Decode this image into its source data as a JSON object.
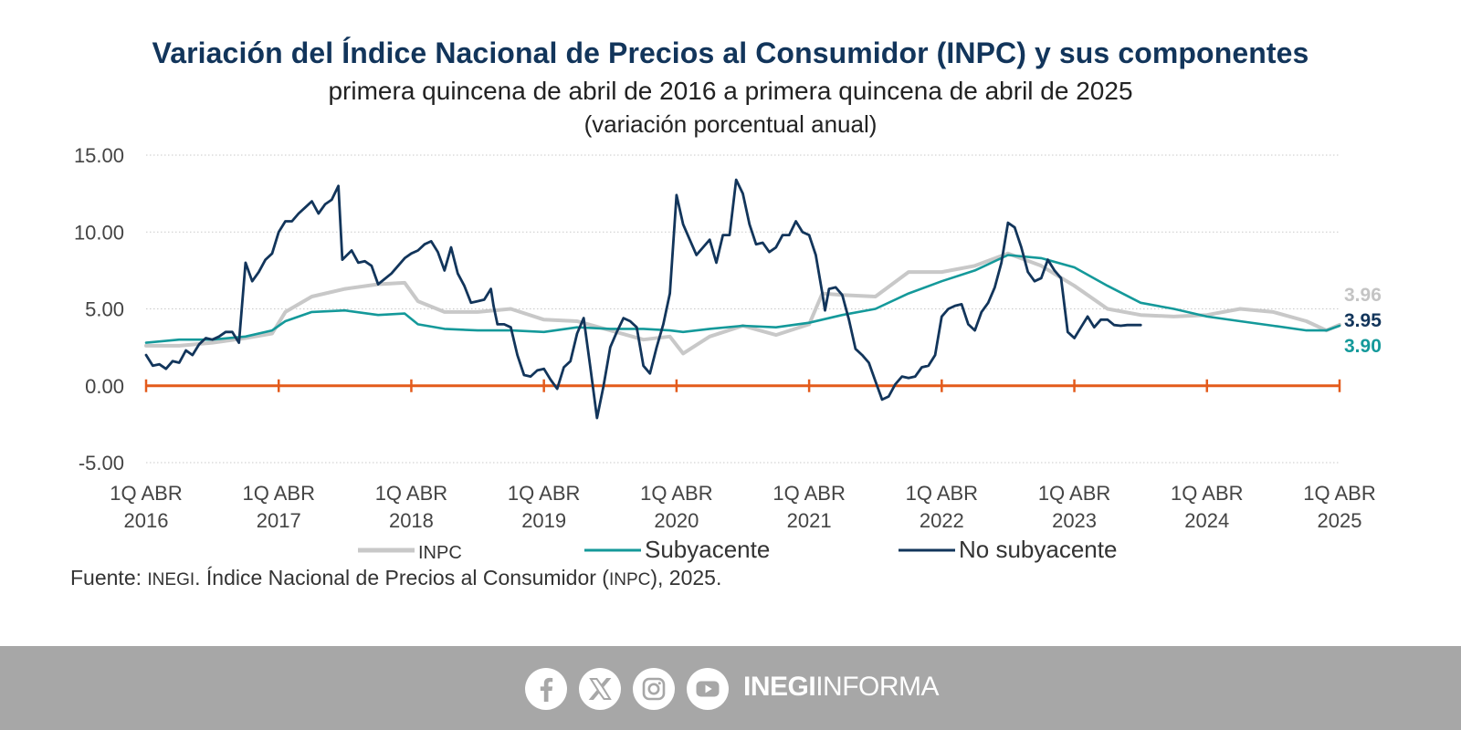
{
  "header": {
    "title": "Variación del Índice Nacional de Precios al Consumidor (INPC) y sus componentes",
    "subtitle": "primera quincena de abril de 2016 a primera quincena de abril de 2025",
    "unit": "(variación porcentual anual)"
  },
  "chart_data": {
    "type": "line",
    "ylim": [
      -5,
      15
    ],
    "yticks": [
      "15.00",
      "10.00",
      "5.00",
      "0.00",
      "-5.00"
    ],
    "x_labels": [
      [
        "1Q ABR",
        "2016"
      ],
      [
        "1Q ABR",
        "2017"
      ],
      [
        "1Q ABR",
        "2018"
      ],
      [
        "1Q ABR",
        "2019"
      ],
      [
        "1Q ABR",
        "2020"
      ],
      [
        "1Q ABR",
        "2021"
      ],
      [
        "1Q ABR",
        "2022"
      ],
      [
        "1Q ABR",
        "2023"
      ],
      [
        "1Q ABR",
        "2024"
      ],
      [
        "1Q ABR",
        "2025"
      ]
    ],
    "x_range": [
      2016.0,
      2025.0
    ],
    "grid": true,
    "legend_position": "bottom",
    "series": [
      {
        "name": "INPC",
        "color": "#c8c8c8",
        "end_label": "3.96",
        "points": [
          [
            2016.0,
            2.6
          ],
          [
            2016.25,
            2.6
          ],
          [
            2016.5,
            2.8
          ],
          [
            2016.75,
            3.1
          ],
          [
            2016.95,
            3.4
          ],
          [
            2017.05,
            4.8
          ],
          [
            2017.25,
            5.8
          ],
          [
            2017.5,
            6.3
          ],
          [
            2017.75,
            6.6
          ],
          [
            2017.95,
            6.7
          ],
          [
            2018.05,
            5.5
          ],
          [
            2018.25,
            4.8
          ],
          [
            2018.5,
            4.8
          ],
          [
            2018.75,
            5.0
          ],
          [
            2019.0,
            4.3
          ],
          [
            2019.25,
            4.2
          ],
          [
            2019.5,
            3.6
          ],
          [
            2019.75,
            3.0
          ],
          [
            2019.95,
            3.2
          ],
          [
            2020.05,
            2.1
          ],
          [
            2020.25,
            3.2
          ],
          [
            2020.5,
            3.9
          ],
          [
            2020.75,
            3.3
          ],
          [
            2021.0,
            4.0
          ],
          [
            2021.1,
            6.0
          ],
          [
            2021.25,
            5.9
          ],
          [
            2021.5,
            5.8
          ],
          [
            2021.75,
            7.4
          ],
          [
            2022.0,
            7.4
          ],
          [
            2022.25,
            7.8
          ],
          [
            2022.5,
            8.6
          ],
          [
            2022.75,
            7.8
          ],
          [
            2023.0,
            6.5
          ],
          [
            2023.25,
            5.0
          ],
          [
            2023.5,
            4.6
          ],
          [
            2023.75,
            4.5
          ],
          [
            2024.0,
            4.6
          ],
          [
            2024.25,
            5.0
          ],
          [
            2024.5,
            4.8
          ],
          [
            2024.75,
            4.2
          ],
          [
            2024.9,
            3.6
          ],
          [
            2025.0,
            3.96
          ]
        ]
      },
      {
        "name": "Subyacente",
        "color": "#14999a",
        "end_label": "3.90",
        "points": [
          [
            2016.0,
            2.8
          ],
          [
            2016.25,
            3.0
          ],
          [
            2016.5,
            3.0
          ],
          [
            2016.75,
            3.2
          ],
          [
            2016.95,
            3.6
          ],
          [
            2017.05,
            4.2
          ],
          [
            2017.25,
            4.8
          ],
          [
            2017.5,
            4.9
          ],
          [
            2017.75,
            4.6
          ],
          [
            2017.95,
            4.7
          ],
          [
            2018.05,
            4.0
          ],
          [
            2018.25,
            3.7
          ],
          [
            2018.5,
            3.6
          ],
          [
            2018.75,
            3.6
          ],
          [
            2019.0,
            3.5
          ],
          [
            2019.25,
            3.8
          ],
          [
            2019.5,
            3.7
          ],
          [
            2019.75,
            3.7
          ],
          [
            2019.95,
            3.6
          ],
          [
            2020.05,
            3.5
          ],
          [
            2020.25,
            3.7
          ],
          [
            2020.5,
            3.9
          ],
          [
            2020.75,
            3.8
          ],
          [
            2021.0,
            4.1
          ],
          [
            2021.25,
            4.6
          ],
          [
            2021.5,
            5.0
          ],
          [
            2021.75,
            6.0
          ],
          [
            2022.0,
            6.8
          ],
          [
            2022.25,
            7.5
          ],
          [
            2022.5,
            8.5
          ],
          [
            2022.75,
            8.3
          ],
          [
            2023.0,
            7.7
          ],
          [
            2023.25,
            6.5
          ],
          [
            2023.5,
            5.4
          ],
          [
            2023.75,
            5.0
          ],
          [
            2024.0,
            4.5
          ],
          [
            2024.25,
            4.2
          ],
          [
            2024.5,
            3.9
          ],
          [
            2024.75,
            3.6
          ],
          [
            2024.9,
            3.6
          ],
          [
            2025.0,
            3.9
          ]
        ]
      },
      {
        "name": "No subyacente",
        "color": "#12355b",
        "end_label": "3.95",
        "points": [
          [
            2016.0,
            2.0
          ],
          [
            2016.05,
            1.3
          ],
          [
            2016.1,
            1.4
          ],
          [
            2016.15,
            1.1
          ],
          [
            2016.2,
            1.6
          ],
          [
            2016.25,
            1.5
          ],
          [
            2016.3,
            2.3
          ],
          [
            2016.35,
            2.0
          ],
          [
            2016.4,
            2.7
          ],
          [
            2016.45,
            3.1
          ],
          [
            2016.5,
            3.0
          ],
          [
            2016.55,
            3.2
          ],
          [
            2016.6,
            3.5
          ],
          [
            2016.65,
            3.5
          ],
          [
            2016.7,
            2.8
          ],
          [
            2016.75,
            8.0
          ],
          [
            2016.8,
            6.8
          ],
          [
            2016.85,
            7.4
          ],
          [
            2016.9,
            8.2
          ],
          [
            2016.95,
            8.6
          ],
          [
            2017.0,
            10.0
          ],
          [
            2017.05,
            10.7
          ],
          [
            2017.1,
            10.7
          ],
          [
            2017.15,
            11.2
          ],
          [
            2017.2,
            11.6
          ],
          [
            2017.25,
            12.0
          ],
          [
            2017.3,
            11.2
          ],
          [
            2017.35,
            11.8
          ],
          [
            2017.4,
            12.1
          ],
          [
            2017.45,
            13.0
          ],
          [
            2017.48,
            8.2
          ],
          [
            2017.55,
            8.8
          ],
          [
            2017.6,
            8.0
          ],
          [
            2017.65,
            8.1
          ],
          [
            2017.7,
            7.8
          ],
          [
            2017.75,
            6.6
          ],
          [
            2017.85,
            7.3
          ],
          [
            2017.95,
            8.3
          ],
          [
            2018.0,
            8.6
          ],
          [
            2018.05,
            8.8
          ],
          [
            2018.1,
            9.2
          ],
          [
            2018.15,
            9.4
          ],
          [
            2018.2,
            8.7
          ],
          [
            2018.25,
            7.5
          ],
          [
            2018.3,
            9.0
          ],
          [
            2018.35,
            7.3
          ],
          [
            2018.4,
            6.5
          ],
          [
            2018.45,
            5.4
          ],
          [
            2018.5,
            5.5
          ],
          [
            2018.55,
            5.6
          ],
          [
            2018.6,
            6.3
          ],
          [
            2018.62,
            5.2
          ],
          [
            2018.65,
            4.0
          ],
          [
            2018.7,
            4.0
          ],
          [
            2018.75,
            3.8
          ],
          [
            2018.8,
            2.0
          ],
          [
            2018.85,
            0.7
          ],
          [
            2018.9,
            0.6
          ],
          [
            2018.95,
            1.0
          ],
          [
            2019.0,
            1.1
          ],
          [
            2019.05,
            0.4
          ],
          [
            2019.1,
            -0.2
          ],
          [
            2019.15,
            1.2
          ],
          [
            2019.2,
            1.6
          ],
          [
            2019.25,
            3.4
          ],
          [
            2019.3,
            4.4
          ],
          [
            2019.35,
            1.2
          ],
          [
            2019.4,
            -2.1
          ],
          [
            2019.45,
            0.0
          ],
          [
            2019.5,
            2.5
          ],
          [
            2019.55,
            3.5
          ],
          [
            2019.6,
            4.4
          ],
          [
            2019.65,
            4.2
          ],
          [
            2019.7,
            3.8
          ],
          [
            2019.75,
            1.3
          ],
          [
            2019.8,
            0.8
          ],
          [
            2019.85,
            2.5
          ],
          [
            2019.9,
            4.0
          ],
          [
            2019.95,
            6.0
          ],
          [
            2020.0,
            12.4
          ],
          [
            2020.05,
            10.5
          ],
          [
            2020.1,
            9.5
          ],
          [
            2020.15,
            8.5
          ],
          [
            2020.2,
            9.0
          ],
          [
            2020.25,
            9.5
          ],
          [
            2020.3,
            8.0
          ],
          [
            2020.35,
            9.8
          ],
          [
            2020.4,
            9.8
          ],
          [
            2020.45,
            13.4
          ],
          [
            2020.5,
            12.5
          ],
          [
            2020.55,
            10.5
          ],
          [
            2020.6,
            9.2
          ],
          [
            2020.65,
            9.3
          ],
          [
            2020.7,
            8.7
          ],
          [
            2020.75,
            9.0
          ],
          [
            2020.8,
            9.8
          ],
          [
            2020.85,
            9.8
          ],
          [
            2020.9,
            10.7
          ],
          [
            2020.95,
            10.0
          ],
          [
            2021.0,
            9.8
          ],
          [
            2021.05,
            8.5
          ],
          [
            2021.1,
            6.0
          ],
          [
            2021.12,
            4.9
          ],
          [
            2021.15,
            6.3
          ],
          [
            2021.2,
            6.4
          ],
          [
            2021.25,
            5.9
          ],
          [
            2021.3,
            4.3
          ],
          [
            2021.35,
            2.4
          ],
          [
            2021.4,
            2.0
          ],
          [
            2021.45,
            1.5
          ],
          [
            2021.5,
            0.3
          ],
          [
            2021.55,
            -0.9
          ],
          [
            2021.6,
            -0.7
          ],
          [
            2021.65,
            0.1
          ],
          [
            2021.7,
            0.6
          ],
          [
            2021.75,
            0.5
          ],
          [
            2021.8,
            0.6
          ],
          [
            2021.85,
            1.2
          ],
          [
            2021.9,
            1.3
          ],
          [
            2021.95,
            2.0
          ],
          [
            2022.0,
            4.5
          ],
          [
            2022.05,
            5.0
          ],
          [
            2022.1,
            5.2
          ],
          [
            2022.15,
            5.3
          ],
          [
            2022.2,
            4.0
          ],
          [
            2022.25,
            3.6
          ],
          [
            2022.3,
            4.8
          ],
          [
            2022.35,
            5.4
          ],
          [
            2022.4,
            6.4
          ],
          [
            2022.45,
            8.0
          ],
          [
            2022.5,
            10.6
          ],
          [
            2022.55,
            10.3
          ],
          [
            2022.6,
            9.0
          ],
          [
            2022.65,
            7.4
          ],
          [
            2022.7,
            6.8
          ],
          [
            2022.75,
            7.0
          ],
          [
            2022.8,
            8.2
          ],
          [
            2022.85,
            7.5
          ],
          [
            2022.9,
            7.0
          ],
          [
            2022.95,
            3.5
          ],
          [
            2023.0,
            3.1
          ],
          [
            2023.05,
            3.8
          ],
          [
            2023.1,
            4.5
          ],
          [
            2023.15,
            3.8
          ],
          [
            2023.2,
            4.3
          ],
          [
            2023.25,
            4.3
          ],
          [
            2023.3,
            3.95
          ],
          [
            2023.35,
            3.9
          ],
          [
            2023.4,
            3.95
          ],
          [
            2023.45,
            3.95
          ],
          [
            2023.5,
            3.95
          ]
        ]
      }
    ],
    "zero_line_color": "#e35b1c"
  },
  "legend": [
    "INPC",
    "Subyacente",
    "No subyacente"
  ],
  "source": {
    "prefix": "Fuente: ",
    "org": "INEGI",
    "middle": ". Índice Nacional de Precios al Consumidor (",
    "abbr": "INPC",
    "suffix": "), 2025."
  },
  "footer": {
    "brand_bold": "INEGI",
    "brand_light": "INFORMA",
    "icons": [
      "facebook-icon",
      "x-icon",
      "instagram-icon",
      "youtube-icon"
    ]
  }
}
